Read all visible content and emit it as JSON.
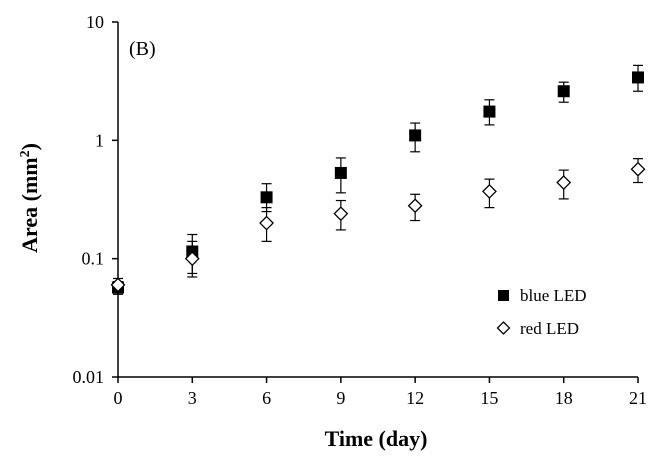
{
  "chart_data": {
    "type": "scatter",
    "panel_label": "(B)",
    "xlabel": "Time (day)",
    "ylabel": {
      "main": "Area (mm",
      "sup": "2",
      "end": ")"
    },
    "xlim": [
      0,
      21
    ],
    "ylim": [
      0.01,
      10
    ],
    "yscale": "log",
    "x_ticks": [
      0,
      3,
      6,
      9,
      12,
      15,
      18,
      21
    ],
    "x_tick_labels": [
      "0",
      "3",
      "6",
      "9",
      "12",
      "15",
      "18",
      "21"
    ],
    "y_ticks": [
      0.01,
      0.1,
      1,
      10
    ],
    "y_tick_labels": [
      "0.01",
      "0.1",
      "1",
      "10"
    ],
    "grid": false,
    "legend_position": "lower-right",
    "series": [
      {
        "name": "blue LED",
        "marker": "filled-square",
        "color": "#000000",
        "x": [
          0,
          3,
          6,
          9,
          12,
          15,
          18,
          21
        ],
        "y": [
          0.057,
          0.115,
          0.33,
          0.53,
          1.1,
          1.75,
          2.6,
          3.4
        ],
        "err_low": [
          0.007,
          0.04,
          0.08,
          0.17,
          0.3,
          0.4,
          0.5,
          0.8
        ],
        "err_high": [
          0.007,
          0.045,
          0.1,
          0.18,
          0.3,
          0.45,
          0.5,
          0.9
        ]
      },
      {
        "name": "red LED",
        "marker": "open-diamond",
        "color": "#000000",
        "x": [
          0,
          3,
          6,
          9,
          12,
          15,
          18,
          21
        ],
        "y": [
          0.06,
          0.1,
          0.2,
          0.24,
          0.28,
          0.37,
          0.44,
          0.57
        ],
        "err_low": [
          0.008,
          0.03,
          0.06,
          0.065,
          0.07,
          0.1,
          0.12,
          0.13
        ],
        "err_high": [
          0.008,
          0.04,
          0.07,
          0.07,
          0.07,
          0.1,
          0.12,
          0.13
        ]
      }
    ]
  }
}
